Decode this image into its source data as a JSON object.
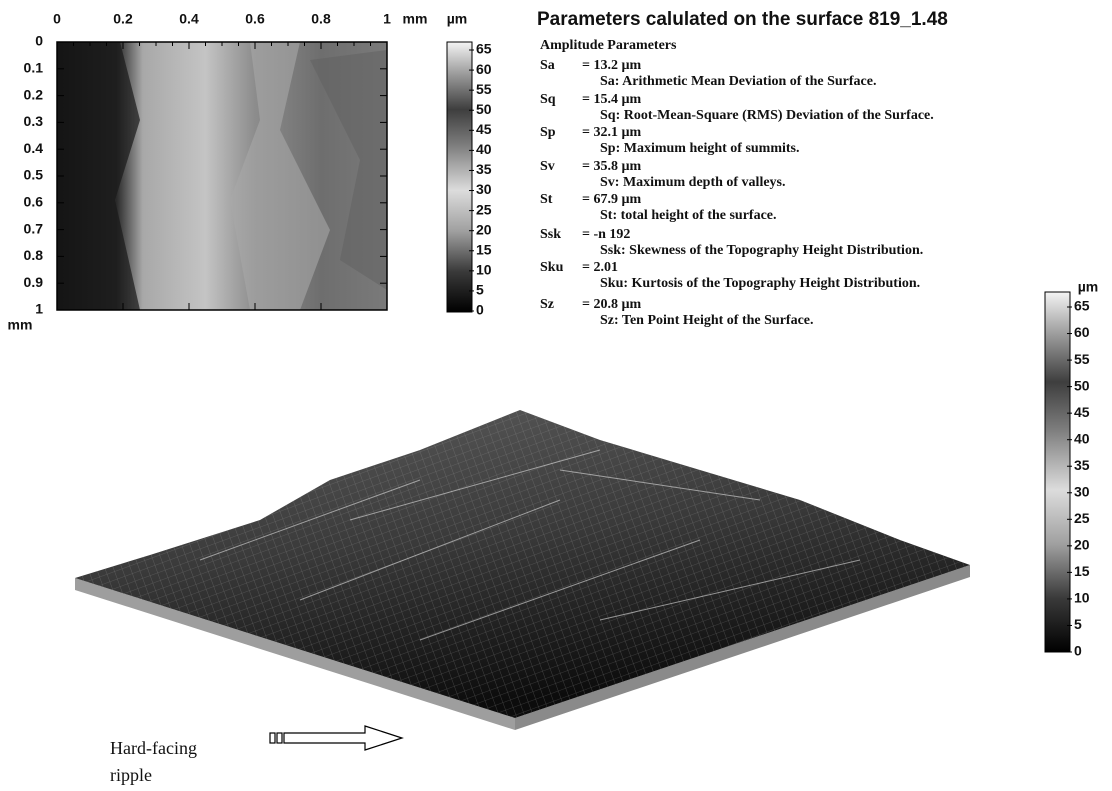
{
  "map": {
    "x_ticks": [
      "0",
      "0.2",
      "0.4",
      "0.6",
      "0.8",
      "1"
    ],
    "x_unit": "mm",
    "y_ticks": [
      "0",
      "0.1",
      "0.2",
      "0.3",
      "0.4",
      "0.5",
      "0.6",
      "0.7",
      "0.8",
      "0.9",
      "1"
    ],
    "y_unit": "mm"
  },
  "colorbar_map": {
    "unit": "µm",
    "ticks": [
      "65",
      "60",
      "55",
      "50",
      "45",
      "40",
      "35",
      "30",
      "25",
      "20",
      "15",
      "10",
      "5",
      "0"
    ]
  },
  "parameters": {
    "title": "Parameters calulated on the surface 819_1.48",
    "section": "Amplitude Parameters",
    "items": [
      {
        "name": "Sa",
        "value": "= 13.2  µm",
        "description": "Sa:  Arithmetic Mean Deviation of the Surface."
      },
      {
        "name": "Sq",
        "value": "= 15.4  µm",
        "description": "Sq:  Root-Mean-Square (RMS) Deviation of the Surface."
      },
      {
        "name": "Sp",
        "value": "= 32.1  µm",
        "description": "Sp:  Maximum height of summits."
      },
      {
        "name": "Sv",
        "value": "= 35.8  µm",
        "description": "Sv:  Maximum depth of valleys."
      },
      {
        "name": "St",
        "value": "= 67.9  µm",
        "description": "St:  total height of the surface."
      },
      {
        "name": "Ssk",
        "value": "= -n 192",
        "description": "Ssk:  Skewness of the Topography Height Distribution."
      },
      {
        "name": "Sku",
        "value": "= 2.01",
        "description": "Sku:  Kurtosis of the Topography Height Distribution."
      },
      {
        "name": "Sz",
        "value": "= 20.8  µm",
        "description": "Sz:  Ten Point Height of the Surface."
      }
    ]
  },
  "colorbar_3d": {
    "unit": "µm",
    "ticks": [
      "65",
      "60",
      "55",
      "50",
      "45",
      "40",
      "35",
      "30",
      "25",
      "20",
      "15",
      "10",
      "5",
      "0"
    ]
  },
  "caption": [
    "Hard-facing",
    "ripple"
  ]
}
